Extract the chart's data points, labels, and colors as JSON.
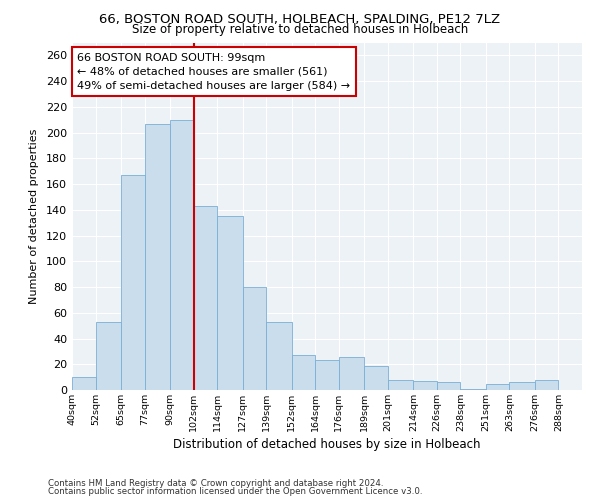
{
  "title": "66, BOSTON ROAD SOUTH, HOLBEACH, SPALDING, PE12 7LZ",
  "subtitle": "Size of property relative to detached houses in Holbeach",
  "xlabel": "Distribution of detached houses by size in Holbeach",
  "ylabel": "Number of detached properties",
  "bar_color": "#c9dded",
  "bar_edge_color": "#7aaed6",
  "vline_x": 102,
  "vline_color": "#cc0000",
  "categories": [
    "40sqm",
    "52sqm",
    "65sqm",
    "77sqm",
    "90sqm",
    "102sqm",
    "114sqm",
    "127sqm",
    "139sqm",
    "152sqm",
    "164sqm",
    "176sqm",
    "189sqm",
    "201sqm",
    "214sqm",
    "226sqm",
    "238sqm",
    "251sqm",
    "263sqm",
    "276sqm",
    "288sqm"
  ],
  "bin_edges": [
    40,
    52,
    65,
    77,
    90,
    102,
    114,
    127,
    139,
    152,
    164,
    176,
    189,
    201,
    214,
    226,
    238,
    251,
    263,
    276,
    288,
    300
  ],
  "values": [
    10,
    53,
    167,
    207,
    210,
    143,
    135,
    80,
    53,
    27,
    23,
    26,
    19,
    8,
    7,
    6,
    1,
    5,
    6,
    8,
    0
  ],
  "ylim": [
    0,
    270
  ],
  "yticks": [
    0,
    20,
    40,
    60,
    80,
    100,
    120,
    140,
    160,
    180,
    200,
    220,
    240,
    260
  ],
  "annotation_text": "66 BOSTON ROAD SOUTH: 99sqm\n← 48% of detached houses are smaller (561)\n49% of semi-detached houses are larger (584) →",
  "annotation_box_color": "white",
  "annotation_box_edge": "#cc0000",
  "footer1": "Contains HM Land Registry data © Crown copyright and database right 2024.",
  "footer2": "Contains public sector information licensed under the Open Government Licence v3.0.",
  "bg_color": "#edf2f7"
}
